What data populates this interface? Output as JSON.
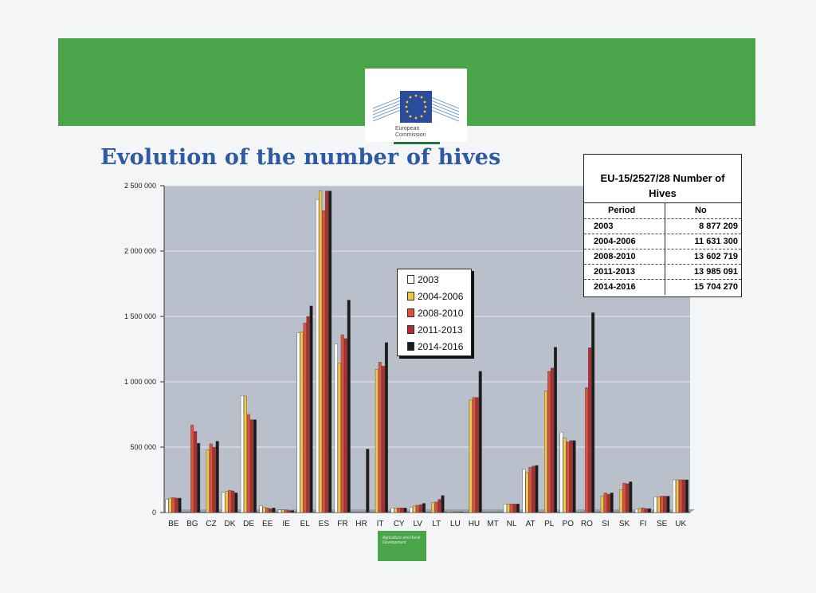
{
  "header": {
    "logo_line1": "European",
    "logo_line2": "Commission",
    "title": "Evolution of the number of hives"
  },
  "colors": {
    "banner": "#4aa54a",
    "title": "#2d5aa0",
    "plot_bg": "#b9c0cb",
    "series": [
      "#ffffff",
      "#f2c544",
      "#e0503a",
      "#b52a2a",
      "#1c1c1c"
    ]
  },
  "chart_data": {
    "type": "bar",
    "title": "",
    "xlabel": "",
    "ylabel": "",
    "ylim": [
      0,
      2500000
    ],
    "yticks": [
      0,
      500000,
      1000000,
      1500000,
      2000000,
      2500000
    ],
    "ytick_labels": [
      "0",
      "500 000",
      "1 000 000",
      "1 500 000",
      "2 000 000",
      "2 500 000"
    ],
    "grid": true,
    "legend_position": "center",
    "categories": [
      "BE",
      "BG",
      "CZ",
      "DK",
      "DE",
      "EE",
      "IE",
      "EL",
      "ES",
      "FR",
      "HR",
      "IT",
      "CY",
      "LV",
      "LT",
      "LU",
      "HU",
      "MT",
      "NL",
      "AT",
      "PL",
      "PO",
      "RO",
      "SI",
      "SK",
      "FI",
      "SE",
      "UK"
    ],
    "series": [
      {
        "name": "2003",
        "values": [
          100000,
          0,
          0,
          155000,
          895000,
          50000,
          20000,
          1375000,
          2395000,
          1290000,
          0,
          0,
          35000,
          40000,
          0,
          5000,
          0,
          0,
          65000,
          330000,
          0,
          615000,
          0,
          0,
          0,
          25000,
          120000,
          250000
        ]
      },
      {
        "name": "2004-2006",
        "values": [
          110000,
          0,
          480000,
          160000,
          890000,
          40000,
          20000,
          1380000,
          2460000,
          1145000,
          0,
          1095000,
          35000,
          50000,
          75000,
          5000,
          860000,
          0,
          65000,
          305000,
          930000,
          570000,
          0,
          125000,
          175000,
          30000,
          120000,
          250000
        ]
      },
      {
        "name": "2008-2010",
        "values": [
          115000,
          670000,
          525000,
          170000,
          750000,
          35000,
          20000,
          1450000,
          2310000,
          1360000,
          0,
          1150000,
          35000,
          55000,
          80000,
          5000,
          880000,
          0,
          65000,
          345000,
          1080000,
          540000,
          955000,
          150000,
          225000,
          35000,
          125000,
          250000
        ]
      },
      {
        "name": "2011-2013",
        "values": [
          110000,
          620000,
          500000,
          165000,
          710000,
          30000,
          15000,
          1500000,
          2460000,
          1330000,
          0,
          1120000,
          35000,
          60000,
          100000,
          5000,
          880000,
          0,
          65000,
          355000,
          1105000,
          550000,
          1260000,
          140000,
          220000,
          30000,
          125000,
          250000
        ]
      },
      {
        "name": "2014-2016",
        "values": [
          110000,
          530000,
          545000,
          150000,
          710000,
          35000,
          15000,
          1580000,
          2460000,
          1625000,
          485000,
          1300000,
          35000,
          70000,
          130000,
          5000,
          1080000,
          0,
          65000,
          360000,
          1265000,
          550000,
          1530000,
          150000,
          235000,
          30000,
          125000,
          250000
        ]
      }
    ]
  },
  "table": {
    "heading_line1": "EU-15/2527/28  Number of",
    "heading_line2": "Hives",
    "col_period": "Period",
    "col_no": "No",
    "rows": [
      {
        "period": "2003",
        "no": "8 877 209"
      },
      {
        "period": "2004-2006",
        "no": "11 631 300"
      },
      {
        "period": "2008-2010",
        "no": "13 602 719"
      },
      {
        "period": "2011-2013",
        "no": "13 985 091"
      },
      {
        "period": "2014-2016",
        "no": "15 704 270"
      }
    ]
  },
  "footer": {
    "logo_text": "Agriculture and Rural Development"
  }
}
